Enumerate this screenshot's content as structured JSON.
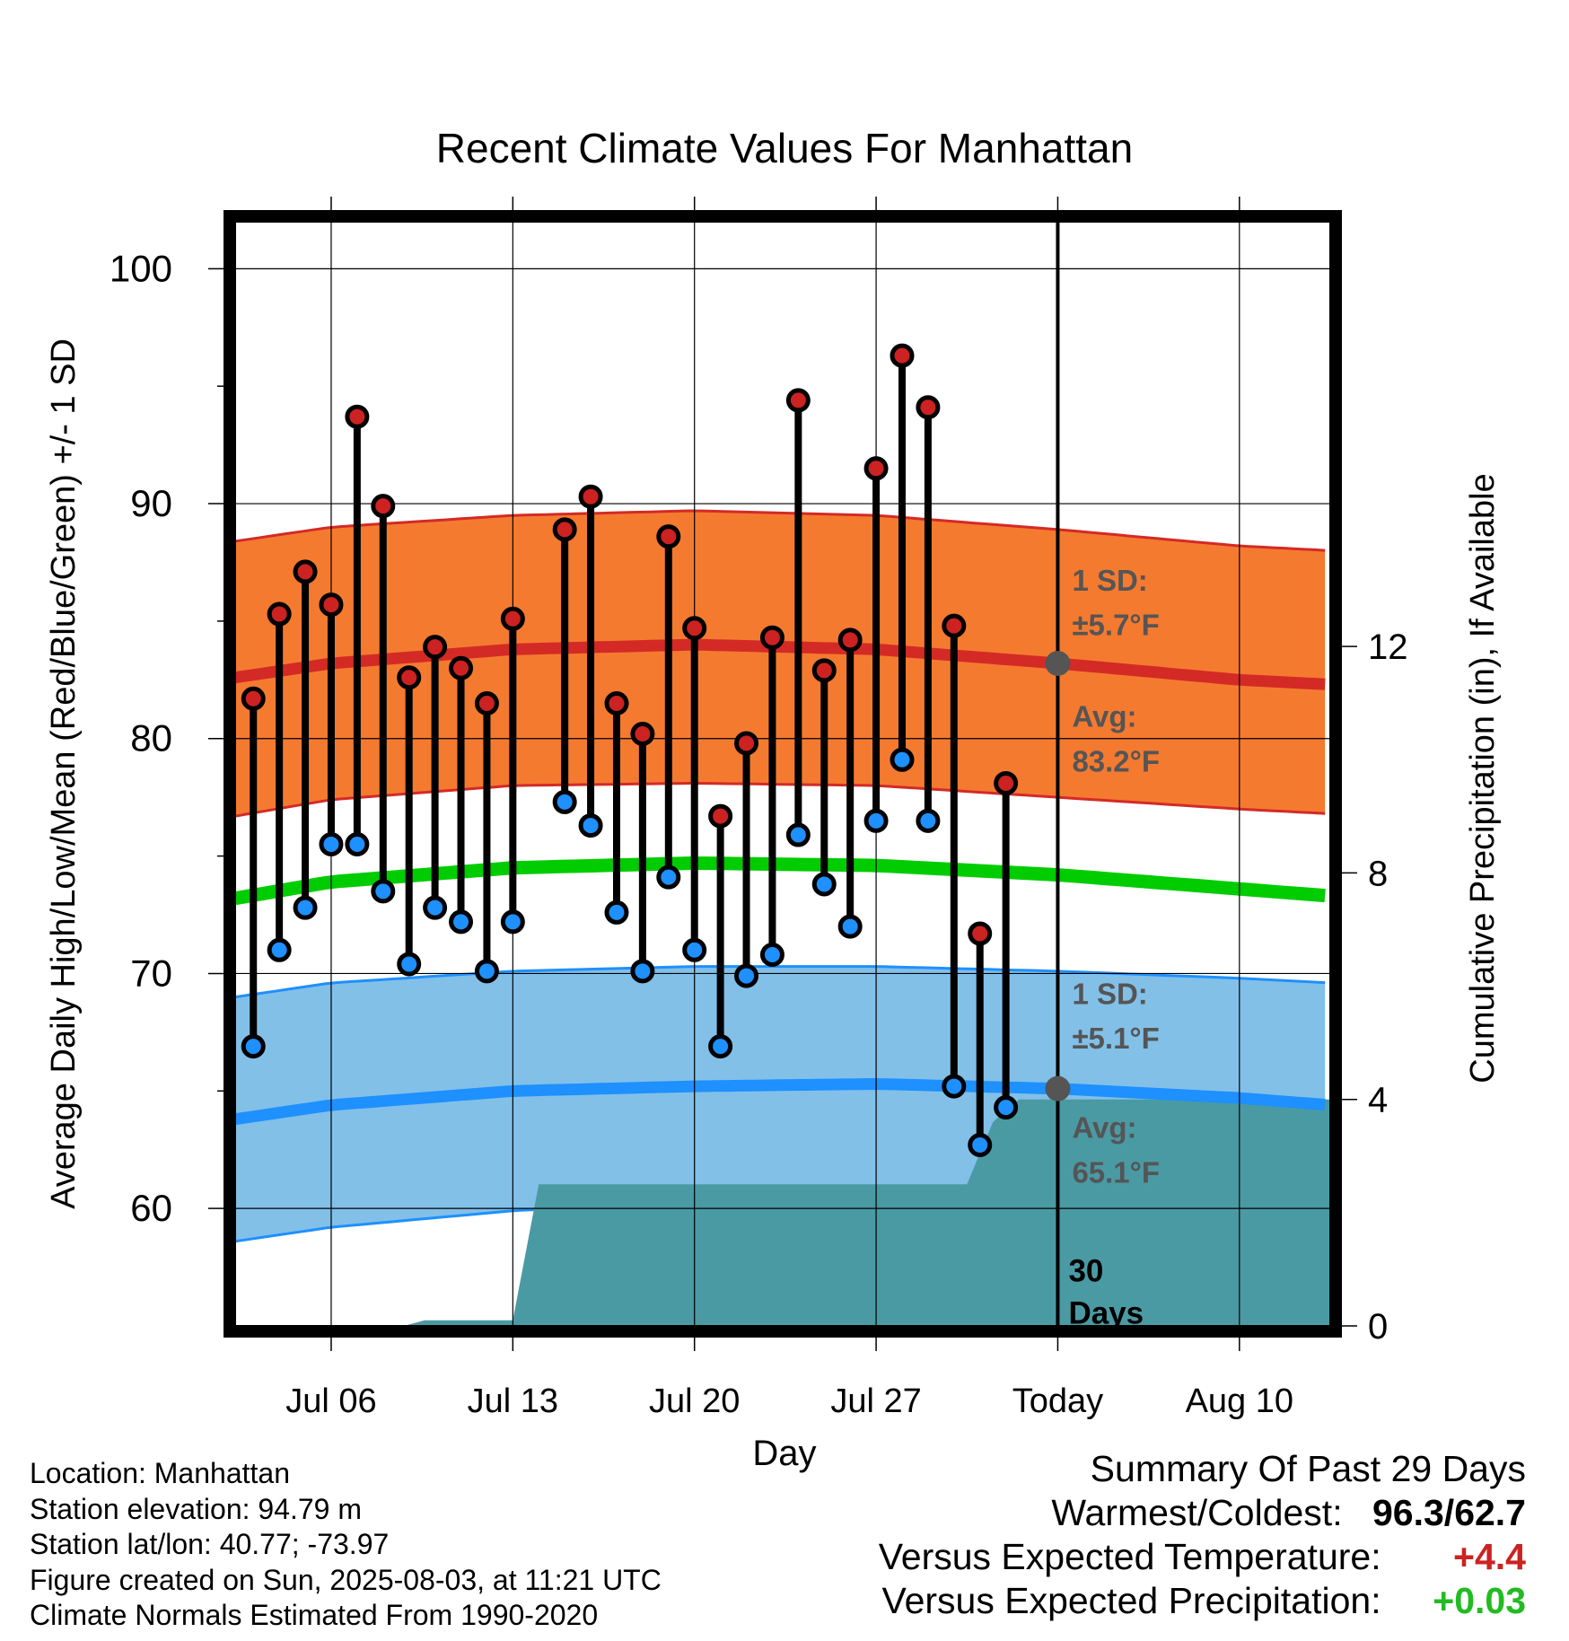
{
  "chart_data": {
    "type": "line",
    "title": "Recent Climate Values For Manhattan",
    "xlabel": "Day",
    "ylabel": "Average Daily High/Low/Mean (Red/Blue/Green) +/- 1 SD",
    "y2label": "Cumulative Precipitation (in), If Available",
    "ylim": [
      55,
      102
    ],
    "y2lim": [
      0,
      19.5
    ],
    "xlim": [
      -0.7,
      41.5
    ],
    "x_unit": "days since Jul 03",
    "x_ticks": [
      {
        "day": 3,
        "label": "Jul 06"
      },
      {
        "day": 10,
        "label": "Jul 13"
      },
      {
        "day": 17,
        "label": "Jul 20"
      },
      {
        "day": 24,
        "label": "Jul 27"
      },
      {
        "day": 31,
        "label": "Today"
      },
      {
        "day": 38,
        "label": "Aug 10"
      }
    ],
    "y_ticks": [
      60,
      70,
      80,
      90,
      100
    ],
    "y2_ticks": [
      0,
      4,
      8,
      12
    ],
    "grid": true,
    "today_day": 31,
    "today_label": "30\nDays",
    "normals": {
      "day": [
        -0.7,
        3,
        10,
        17,
        24,
        31,
        38,
        41.5
      ],
      "high_avg": [
        82.6,
        83.2,
        83.8,
        84.0,
        83.8,
        83.2,
        82.5,
        82.3
      ],
      "high_upper": [
        88.4,
        89.0,
        89.5,
        89.7,
        89.5,
        88.9,
        88.2,
        88.0
      ],
      "high_lower": [
        76.7,
        77.4,
        78.0,
        78.1,
        78.0,
        77.5,
        77.0,
        76.8
      ],
      "mean": [
        73.2,
        73.9,
        74.5,
        74.7,
        74.6,
        74.2,
        73.6,
        73.3
      ],
      "low_avg": [
        63.8,
        64.4,
        65.0,
        65.2,
        65.3,
        65.1,
        64.7,
        64.4
      ],
      "low_upper": [
        69.0,
        69.6,
        70.1,
        70.3,
        70.3,
        70.1,
        69.8,
        69.6
      ],
      "low_lower": [
        58.6,
        59.2,
        59.9,
        60.3,
        60.3,
        60.1,
        59.6,
        59.3
      ]
    },
    "series": [
      {
        "name": "High",
        "color": "#cc2222",
        "values": [
          81.7,
          85.3,
          87.1,
          85.7,
          93.7,
          89.9,
          82.6,
          83.9,
          83.0,
          81.5,
          85.1,
          null,
          88.9,
          90.3,
          81.5,
          80.2,
          88.6,
          84.7,
          76.7,
          79.8,
          84.3,
          94.4,
          82.9,
          84.2,
          91.5,
          96.3,
          94.1,
          84.8,
          71.7,
          78.1
        ]
      },
      {
        "name": "Low",
        "color": "#1e90ff",
        "values": [
          66.9,
          71.0,
          72.8,
          75.5,
          75.5,
          73.5,
          70.4,
          72.8,
          72.2,
          70.1,
          72.2,
          null,
          77.3,
          76.3,
          72.6,
          70.1,
          74.1,
          71.0,
          66.9,
          69.9,
          70.8,
          75.9,
          73.8,
          72.0,
          76.5,
          79.1,
          76.5,
          65.2,
          62.7,
          64.3
        ]
      }
    ],
    "obs_day_start": 0,
    "precip": {
      "day": [
        -0.7,
        5.8,
        6.6,
        9.9,
        10.0,
        11.0,
        27.5,
        28.5,
        29.5,
        41.5
      ],
      "values": [
        0.0,
        0.0,
        0.1,
        0.1,
        0.1,
        2.5,
        2.5,
        3.6,
        4.0,
        4.0
      ]
    },
    "annotations": {
      "high_sd_label": "1 SD:",
      "high_sd_value": "±5.7°F",
      "high_avg_label": "Avg:",
      "high_avg_value": "83.2°F",
      "low_sd_label": "1 SD:",
      "low_sd_value": "±5.1°F",
      "low_avg_label": "Avg:",
      "low_avg_value": "65.1°F",
      "today_high_avg": 83.2,
      "today_low_avg": 65.1
    },
    "colors": {
      "high_band": "#f47a30",
      "high_line": "#d42a26",
      "mean_line": "#00cc00",
      "low_band": "#82c0e8",
      "low_line": "#1e90ff",
      "precip": "#4a9aa4",
      "annot": "#555555"
    }
  },
  "metadata": [
    "Location: Manhattan",
    "Station elevation: 94.79 m",
    "Station lat/lon: 40.77; -73.97",
    "Figure created on Sun, 2025-08-03, at 11:21 UTC",
    "Climate Normals Estimated From 1990-2020"
  ],
  "summary": {
    "title": "Summary Of Past 29 Days",
    "warmest_coldest_label": "Warmest/Coldest:",
    "warmest_coldest_value": "96.3/62.7",
    "temp_label": "Versus Expected Temperature:",
    "temp_value": "+4.4",
    "temp_color": "#cc2222",
    "precip_label": "Versus Expected Precipitation:",
    "precip_value": "+0.03",
    "precip_color": "#22bb22"
  }
}
